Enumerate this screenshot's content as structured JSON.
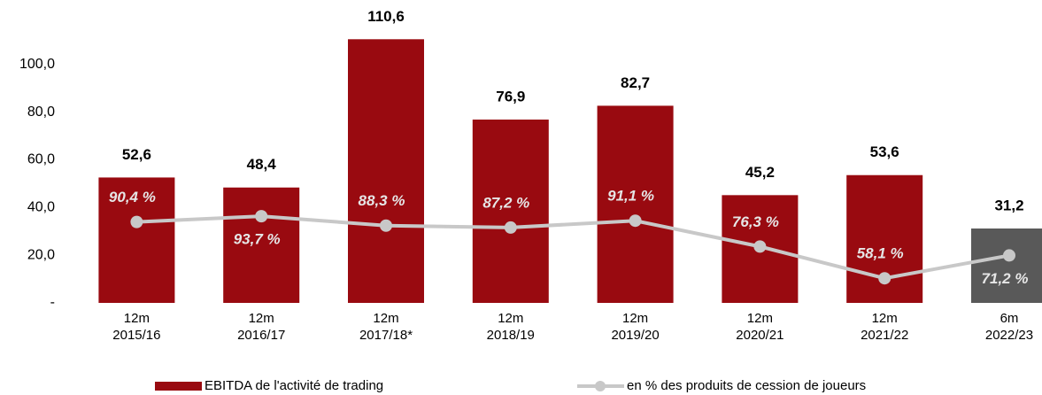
{
  "chart_data": {
    "type": "bar_line",
    "categories": [
      "12m\n2015/16",
      "12m\n2016/17",
      "12m\n2017/18*",
      "12m\n2018/19",
      "12m\n2019/20",
      "12m\n2020/21",
      "12m\n2021/22",
      "6m\n2022/23"
    ],
    "series": [
      {
        "name": "EBITDA de l'activité de trading",
        "type": "bar",
        "color": "#990a10",
        "colors": [
          "#990a10",
          "#990a10",
          "#990a10",
          "#990a10",
          "#990a10",
          "#990a10",
          "#990a10",
          "#595959"
        ],
        "values": [
          52.6,
          48.4,
          110.6,
          76.9,
          82.7,
          45.2,
          53.6,
          31.2
        ],
        "value_labels": [
          "52,6",
          "48,4",
          "110,6",
          "76,9",
          "82,7",
          "45,2",
          "53,6",
          "31,2"
        ]
      },
      {
        "name": "en % des produits de cession de joueurs",
        "type": "line",
        "axis": "y2",
        "color": "#c8c8c8",
        "values": [
          90.4,
          93.7,
          88.3,
          87.2,
          91.1,
          76.3,
          58.1,
          71.2
        ],
        "value_labels": [
          "90,4 %",
          "93,7 %",
          "88,3 %",
          "87,2 %",
          "91,1 %",
          "76,3 %",
          "58,1 %",
          "71,2 %"
        ]
      }
    ],
    "ylim": [
      0,
      120
    ],
    "yticks": [
      {
        "value": 0,
        "label": "-"
      },
      {
        "value": 20,
        "label": "20,0"
      },
      {
        "value": 40,
        "label": "40,0"
      },
      {
        "value": 60,
        "label": "60,0"
      },
      {
        "value": 80,
        "label": "80,0"
      },
      {
        "value": 100,
        "label": "100,0"
      }
    ],
    "y2lim": [
      44,
      208
    ]
  }
}
